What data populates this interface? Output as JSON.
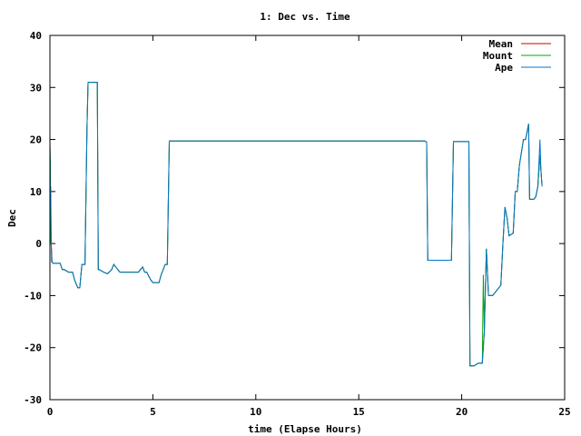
{
  "chart_data": {
    "type": "line",
    "title": "1: Dec vs. Time",
    "xlabel": "time (Elapse Hours)",
    "ylabel": "Dec",
    "xlim": [
      0,
      25
    ],
    "ylim": [
      -30,
      40
    ],
    "xticks": [
      "0",
      "5",
      "10",
      "15",
      "20",
      "25"
    ],
    "xtick_values": [
      0,
      5,
      10,
      15,
      20,
      25
    ],
    "yticks": [
      "-30",
      "-20",
      "-10",
      "0",
      "10",
      "20",
      "30",
      "40"
    ],
    "ytick_values": [
      -30,
      -20,
      -10,
      0,
      10,
      20,
      30,
      40
    ],
    "grid": false,
    "legend_position": "top-right",
    "series": [
      {
        "name": "Mean",
        "color": "#cc0000",
        "x": [
          0.0,
          0.02,
          0.04,
          0.06,
          0.1,
          0.15,
          0.3,
          0.5,
          0.6,
          0.7,
          0.9,
          1.1,
          1.2,
          1.35,
          1.45,
          1.55,
          1.7,
          1.8,
          1.85,
          1.9,
          1.95,
          2.0,
          2.3,
          2.35,
          2.4,
          2.6,
          2.8,
          3.0,
          3.1,
          3.2,
          3.3,
          3.4,
          3.6,
          3.8,
          4.0,
          4.3,
          4.5,
          4.6,
          4.7,
          4.9,
          5.0,
          5.1,
          5.3,
          5.4,
          5.6,
          5.7,
          5.8,
          5.85,
          18.2,
          18.3,
          18.35,
          18.5,
          19.5,
          19.6,
          19.65,
          20.3,
          20.35,
          20.4,
          20.6,
          20.8,
          21.0,
          21.1,
          21.2,
          21.3,
          21.5,
          21.7,
          21.9,
          22.0,
          22.1,
          22.2,
          22.3,
          22.5,
          22.6,
          22.7,
          22.8,
          23.0,
          23.1,
          23.2,
          23.25,
          23.3,
          23.35,
          23.4,
          23.5,
          23.6,
          23.7,
          23.8,
          23.85,
          23.9
        ],
        "y": [
          19,
          10,
          8,
          0,
          -3.5,
          -3.8,
          -3.8,
          -3.8,
          -5,
          -5,
          -5.5,
          -5.5,
          -7,
          -8.5,
          -8.5,
          -4,
          -4,
          22,
          31,
          31,
          31,
          31,
          31,
          -5,
          -5,
          -5.5,
          -5.8,
          -5,
          -4,
          -4.5,
          -5,
          -5.5,
          -5.5,
          -5.5,
          -5.5,
          -5.5,
          -4.5,
          -5.5,
          -5.5,
          -7,
          -7.5,
          -7.5,
          -7.5,
          -6,
          -4,
          -4,
          19.7,
          19.7,
          19.7,
          19.5,
          -3.2,
          -3.2,
          -3.2,
          19.6,
          19.6,
          19.6,
          19.6,
          -23.5,
          -23.5,
          -23,
          -23,
          -17,
          -1,
          -10,
          -10,
          -9,
          -8,
          0,
          7,
          5,
          1.5,
          2,
          10,
          10,
          15,
          20,
          20,
          22,
          23,
          8.5,
          8.5,
          8.5,
          8.5,
          9,
          11,
          17,
          14,
          11
        ]
      },
      {
        "name": "Mount",
        "color": "#00aa00",
        "x": [
          0.0,
          0.02,
          0.04,
          0.06,
          0.08,
          0.1,
          0.15,
          0.3,
          0.5,
          0.6,
          0.7,
          0.9,
          1.1,
          1.2,
          1.35,
          1.45,
          1.55,
          1.7,
          1.8,
          1.85,
          1.9,
          1.95,
          2.0,
          2.3,
          2.35,
          2.4,
          2.6,
          2.8,
          3.0,
          3.1,
          3.2,
          3.3,
          3.4,
          3.6,
          3.8,
          4.0,
          4.3,
          4.5,
          4.6,
          4.7,
          4.9,
          5.0,
          5.1,
          5.3,
          5.4,
          5.6,
          5.7,
          5.8,
          5.85,
          18.2,
          18.3,
          18.35,
          18.5,
          19.5,
          19.6,
          19.65,
          20.3,
          20.35,
          20.4,
          20.6,
          20.8,
          21.0,
          21.05,
          21.1,
          21.2,
          21.3,
          21.5,
          21.7,
          21.9,
          22.0,
          22.1,
          22.2,
          22.3,
          22.5,
          22.6,
          22.7,
          22.8,
          23.0,
          23.1,
          23.2,
          23.25,
          23.3,
          23.35,
          23.4,
          23.5,
          23.6,
          23.7,
          23.8,
          23.85,
          23.9
        ],
        "y": [
          19,
          15,
          0,
          0,
          -3.5,
          -3.5,
          -3.8,
          -3.8,
          -3.8,
          -5,
          -5,
          -5.5,
          -5.5,
          -7,
          -8.5,
          -8.5,
          -4,
          -4,
          22,
          31,
          31,
          31,
          31,
          31,
          -5,
          -5,
          -5.5,
          -5.8,
          -5,
          -4,
          -4.5,
          -5,
          -5.5,
          -5.5,
          -5.5,
          -5.5,
          -5.5,
          -4.5,
          -5.5,
          -5.5,
          -7,
          -7.5,
          -7.5,
          -7.5,
          -6,
          -4,
          -4,
          19.7,
          19.7,
          19.7,
          19.5,
          -3.2,
          -3.2,
          -3.2,
          19.6,
          19.6,
          19.6,
          19.6,
          -23.5,
          -23.5,
          -23,
          -23,
          -6,
          -17,
          -1,
          -10,
          -10,
          -9,
          -8,
          0,
          7,
          5,
          1.5,
          2,
          10,
          10,
          15,
          20,
          20,
          22,
          23,
          8.5,
          8.5,
          8.5,
          8.5,
          9,
          11,
          17,
          14,
          11
        ]
      },
      {
        "name": "Ape",
        "color": "#0077cc",
        "x": [
          0.0,
          0.02,
          0.04,
          0.06,
          0.1,
          0.15,
          0.3,
          0.5,
          0.6,
          0.7,
          0.9,
          1.1,
          1.2,
          1.35,
          1.45,
          1.55,
          1.7,
          1.8,
          1.85,
          1.9,
          1.95,
          2.0,
          2.3,
          2.35,
          2.4,
          2.6,
          2.8,
          3.0,
          3.1,
          3.2,
          3.3,
          3.4,
          3.6,
          3.8,
          4.0,
          4.3,
          4.5,
          4.6,
          4.7,
          4.9,
          5.0,
          5.1,
          5.3,
          5.4,
          5.6,
          5.7,
          5.8,
          5.85,
          18.2,
          18.3,
          18.35,
          18.5,
          19.5,
          19.6,
          19.65,
          20.3,
          20.35,
          20.4,
          20.6,
          20.8,
          21.0,
          21.1,
          21.2,
          21.3,
          21.5,
          21.7,
          21.9,
          22.0,
          22.1,
          22.2,
          22.3,
          22.5,
          22.6,
          22.7,
          22.8,
          23.0,
          23.1,
          23.2,
          23.25,
          23.3,
          23.35,
          23.4,
          23.5,
          23.6,
          23.7,
          23.8,
          23.85,
          23.9
        ],
        "y": [
          20,
          8,
          11,
          0,
          -3.5,
          -3.8,
          -3.8,
          -3.8,
          -5,
          -5,
          -5.5,
          -5.5,
          -7,
          -8.5,
          -8.5,
          -4,
          -4,
          22,
          31,
          31,
          31,
          31,
          31,
          -5,
          -5,
          -5.5,
          -5.8,
          -5,
          -4,
          -4.5,
          -5,
          -5.5,
          -5.5,
          -5.5,
          -5.5,
          -5.5,
          -4.5,
          -5.5,
          -5.5,
          -7,
          -7.5,
          -7.5,
          -7.5,
          -6,
          -4,
          -4,
          19.7,
          19.7,
          19.7,
          19.5,
          -3.2,
          -3.2,
          -3.2,
          19.6,
          19.6,
          19.6,
          19.6,
          -23.5,
          -23.5,
          -23,
          -23,
          -17,
          -1,
          -10,
          -10,
          -9,
          -8,
          0,
          7,
          5,
          1.5,
          2,
          10,
          10,
          15,
          20,
          20,
          22,
          23,
          8.5,
          8.5,
          8.5,
          8.5,
          9,
          11,
          20,
          14,
          11
        ]
      }
    ]
  }
}
